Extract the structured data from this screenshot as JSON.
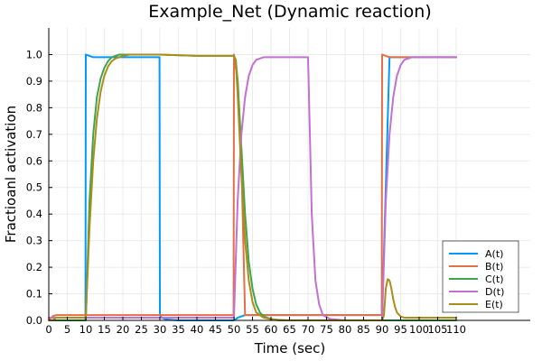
{
  "chart_data": {
    "type": "line",
    "title": "Example_Net (Dynamic reaction)",
    "xlabel": "Time (sec)",
    "ylabel": "Fractioanl activation",
    "xlim": [
      0,
      130
    ],
    "ylim": [
      0,
      1.1
    ],
    "xticks": [
      0,
      5,
      10,
      15,
      20,
      25,
      30,
      35,
      40,
      45,
      50,
      55,
      60,
      65,
      70,
      75,
      80,
      85,
      90,
      95,
      100,
      105,
      110
    ],
    "xtick_labels": [
      "0",
      "5",
      "10",
      "15",
      "20",
      "25",
      "30",
      "35",
      "40",
      "45",
      "50",
      "55",
      "60",
      "65",
      "70",
      "75",
      "80",
      "85",
      "90",
      "95",
      "100",
      "105",
      "110"
    ],
    "yticks": [
      0,
      0.1,
      0.2,
      0.3,
      0.4,
      0.5,
      0.6,
      0.7,
      0.8,
      0.9,
      1.0
    ],
    "ytick_labels": [
      "0.0",
      "0.1",
      "0.2",
      "0.3",
      "0.4",
      "0.5",
      "0.6",
      "0.7",
      "0.8",
      "0.9",
      "1.0"
    ],
    "grid": true,
    "legend_position": "bottom-right",
    "series": [
      {
        "name": "A(t)",
        "color": "#009AFA",
        "x": [
          0,
          9.9,
          10,
          11,
          12,
          14,
          29.9,
          30,
          30.5,
          32,
          35,
          50,
          51,
          53,
          55,
          60,
          70,
          89.9,
          90,
          92,
          94,
          96,
          100,
          110
        ],
        "y": [
          0.0,
          0.0,
          1.0,
          0.995,
          0.99,
          0.99,
          0.99,
          0.02,
          0.01,
          0.003,
          0.0,
          0.0,
          0.01,
          0.02,
          0.02,
          0.02,
          0.02,
          0.02,
          0.02,
          0.99,
          0.99,
          0.99,
          0.99,
          0.99
        ]
      },
      {
        "name": "B(t)",
        "color": "#E36F47",
        "x": [
          0,
          1,
          2,
          5,
          10,
          20,
          30,
          40,
          49.9,
          50,
          51,
          52,
          53,
          70,
          89.9,
          90,
          91,
          92,
          94,
          100,
          110
        ],
        "y": [
          0.0,
          0.015,
          0.02,
          0.02,
          0.02,
          0.02,
          0.02,
          0.02,
          0.02,
          1.0,
          0.9,
          0.6,
          0.02,
          0.02,
          0.02,
          1.0,
          0.995,
          0.99,
          0.99,
          0.99,
          0.99
        ]
      },
      {
        "name": "C(t)",
        "color": "#3EA44E",
        "x": [
          0,
          10,
          11,
          12,
          13,
          14,
          15,
          16,
          17,
          18,
          19,
          20,
          22,
          25,
          30,
          40,
          50,
          50.5,
          51,
          52,
          53,
          54,
          55,
          56,
          57,
          58,
          60,
          62,
          65,
          70,
          75,
          80,
          90,
          95,
          100,
          110
        ],
        "y": [
          0.0,
          0.0,
          0.45,
          0.7,
          0.84,
          0.91,
          0.95,
          0.975,
          0.99,
          0.995,
          1.0,
          1.0,
          1.0,
          1.0,
          1.0,
          0.995,
          0.995,
          0.98,
          0.9,
          0.65,
          0.4,
          0.22,
          0.12,
          0.06,
          0.03,
          0.015,
          0.005,
          0.0,
          0.0,
          0.0,
          0.0,
          0.0,
          0.0,
          0.0,
          0.0,
          0.0
        ]
      },
      {
        "name": "D(t)",
        "color": "#C271D2",
        "x": [
          0,
          10,
          30,
          49.9,
          50,
          51,
          52,
          53,
          54,
          55,
          56,
          58,
          60,
          65,
          69.9,
          70,
          70.5,
          71,
          72,
          73,
          74,
          76,
          80,
          89.9,
          90,
          91,
          92,
          93,
          94,
          95,
          96,
          98,
          100,
          110
        ],
        "y": [
          0.01,
          0.01,
          0.01,
          0.01,
          0.01,
          0.45,
          0.7,
          0.84,
          0.92,
          0.96,
          0.98,
          0.99,
          0.99,
          0.99,
          0.99,
          0.99,
          0.7,
          0.4,
          0.15,
          0.06,
          0.02,
          0.005,
          0.0,
          0.0,
          0.0,
          0.45,
          0.7,
          0.84,
          0.92,
          0.96,
          0.98,
          0.99,
          0.99,
          0.99
        ]
      },
      {
        "name": "E(t)",
        "color": "#AC8D18",
        "x": [
          0,
          1,
          2,
          10,
          11,
          12,
          13,
          14,
          15,
          16,
          17,
          18,
          19,
          20,
          22,
          25,
          30,
          40,
          50,
          50.5,
          51,
          52,
          53,
          54,
          55,
          56,
          58,
          60,
          62,
          65,
          70,
          80,
          90,
          90.5,
          91,
          91.5,
          92,
          92.5,
          93,
          93.5,
          94,
          95,
          96,
          98,
          100,
          110
        ],
        "y": [
          0.0,
          0.0,
          0.01,
          0.01,
          0.35,
          0.6,
          0.76,
          0.86,
          0.92,
          0.955,
          0.975,
          0.985,
          0.99,
          0.995,
          1.0,
          1.0,
          1.0,
          0.995,
          0.995,
          0.97,
          0.85,
          0.55,
          0.3,
          0.15,
          0.07,
          0.03,
          0.01,
          0.005,
          0.002,
          0.0,
          0.0,
          0.0,
          0.0,
          0.02,
          0.12,
          0.155,
          0.15,
          0.12,
          0.08,
          0.05,
          0.03,
          0.015,
          0.01,
          0.01,
          0.01,
          0.01
        ]
      }
    ]
  }
}
